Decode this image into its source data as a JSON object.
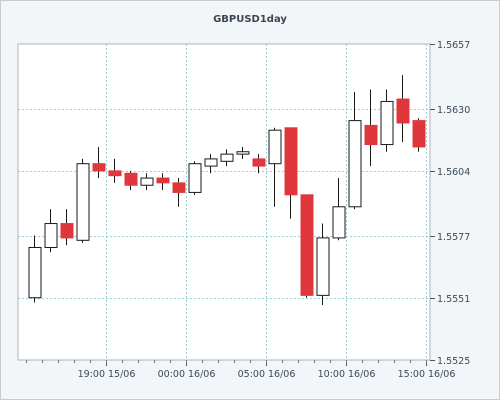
{
  "chart_data": {
    "type": "candlestick",
    "title": "GBPUSD1day",
    "y_ticks": [
      "1.5657",
      "1.5630",
      "1.5604",
      "1.5577",
      "1.5551",
      "1.5525"
    ],
    "ylim": [
      1.5525,
      1.5657
    ],
    "x_ticks": [
      {
        "label": "19:00 15/06",
        "index": 4.5
      },
      {
        "label": "00:00 16/06",
        "index": 9.5
      },
      {
        "label": "05:00 16/06",
        "index": 14.5
      },
      {
        "label": "10:00 16/06",
        "index": 19.5
      },
      {
        "label": "15:00 16/06",
        "index": 24.5
      }
    ],
    "grid": true,
    "colors": {
      "up_fill": "#ffffff",
      "down_fill": "#e0373c",
      "outline": "#1a1a1a",
      "grid": "#7fc4cf",
      "background": "#ffffff"
    },
    "candles": [
      {
        "open": 1.5551,
        "close": 1.5572,
        "high": 1.5577,
        "low": 1.5549
      },
      {
        "open": 1.5572,
        "close": 1.5582,
        "high": 1.5588,
        "low": 1.557
      },
      {
        "open": 1.5582,
        "close": 1.5576,
        "high": 1.5588,
        "low": 1.5573
      },
      {
        "open": 1.5575,
        "close": 1.5607,
        "high": 1.5609,
        "low": 1.5574
      },
      {
        "open": 1.5607,
        "close": 1.5604,
        "high": 1.5614,
        "low": 1.5601
      },
      {
        "open": 1.5604,
        "close": 1.5602,
        "high": 1.5609,
        "low": 1.5599
      },
      {
        "open": 1.5603,
        "close": 1.5598,
        "high": 1.5604,
        "low": 1.5596
      },
      {
        "open": 1.5598,
        "close": 1.5601,
        "high": 1.5603,
        "low": 1.5596
      },
      {
        "open": 1.5601,
        "close": 1.5599,
        "high": 1.5603,
        "low": 1.5596
      },
      {
        "open": 1.5599,
        "close": 1.5595,
        "high": 1.5601,
        "low": 1.5589
      },
      {
        "open": 1.5595,
        "close": 1.5607,
        "high": 1.5608,
        "low": 1.5594
      },
      {
        "open": 1.5606,
        "close": 1.5609,
        "high": 1.5611,
        "low": 1.5603
      },
      {
        "open": 1.5608,
        "close": 1.5611,
        "high": 1.5613,
        "low": 1.5606
      },
      {
        "open": 1.5611,
        "close": 1.5612,
        "high": 1.5614,
        "low": 1.5609
      },
      {
        "open": 1.5609,
        "close": 1.5606,
        "high": 1.5611,
        "low": 1.5603
      },
      {
        "open": 1.5607,
        "close": 1.5621,
        "high": 1.5622,
        "low": 1.5589
      },
      {
        "open": 1.5622,
        "close": 1.5594,
        "high": 1.5622,
        "low": 1.5584
      },
      {
        "open": 1.5594,
        "close": 1.5552,
        "high": 1.5594,
        "low": 1.5551
      },
      {
        "open": 1.5552,
        "close": 1.5576,
        "high": 1.5582,
        "low": 1.5548
      },
      {
        "open": 1.5576,
        "close": 1.5589,
        "high": 1.5601,
        "low": 1.5575
      },
      {
        "open": 1.5589,
        "close": 1.5625,
        "high": 1.5637,
        "low": 1.5588
      },
      {
        "open": 1.5623,
        "close": 1.5615,
        "high": 1.5638,
        "low": 1.5606
      },
      {
        "open": 1.5615,
        "close": 1.5633,
        "high": 1.5638,
        "low": 1.5612
      },
      {
        "open": 1.5634,
        "close": 1.5624,
        "high": 1.5644,
        "low": 1.5616
      },
      {
        "open": 1.5625,
        "close": 1.5614,
        "high": 1.5626,
        "low": 1.5612
      }
    ]
  }
}
